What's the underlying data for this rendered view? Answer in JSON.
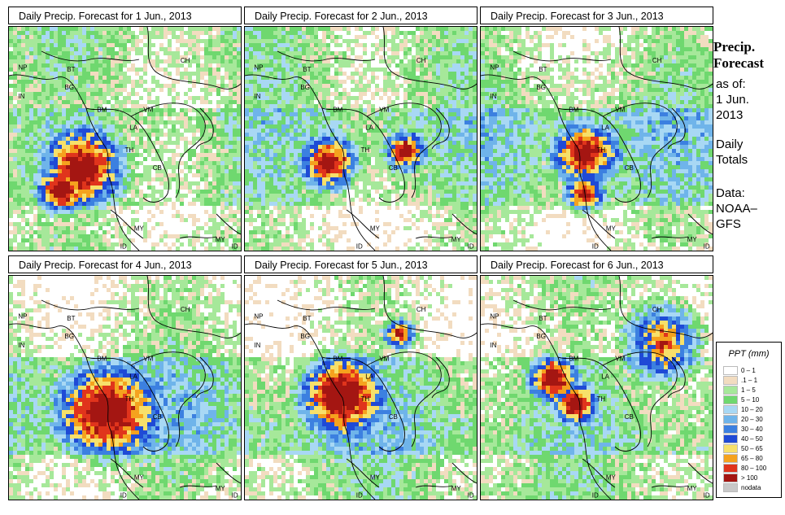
{
  "panels": [
    {
      "title": "Daily Precip. Forecast for  1 Jun., 2013",
      "seed": 11,
      "hot": 0
    },
    {
      "title": "Daily Precip. Forecast for  2 Jun., 2013",
      "seed": 23,
      "hot": 1
    },
    {
      "title": "Daily Precip. Forecast for  3 Jun., 2013",
      "seed": 37,
      "hot": 2
    },
    {
      "title": "Daily Precip. Forecast for  4 Jun., 2013",
      "seed": 41,
      "hot": 3
    },
    {
      "title": "Daily Precip. Forecast for  5 Jun., 2013",
      "seed": 53,
      "hot": 4
    },
    {
      "title": "Daily Precip. Forecast for  6 Jun., 2013",
      "seed": 67,
      "hot": 5
    }
  ],
  "map_labels": [
    "CH",
    "NP",
    "BT",
    "IN",
    "BG",
    "BM",
    "VM",
    "LA",
    "TH",
    "CB",
    "MY",
    "ID",
    "MY",
    "ID"
  ],
  "sidebar": {
    "title_line1": "Precip.",
    "title_line2": "Forecast",
    "asof_line1": "as of:",
    "asof_line2": "1 Jun.",
    "asof_line3": "2013",
    "totals_line1": "Daily",
    "totals_line2": "Totals",
    "data_line1": "Data:",
    "data_line2": "NOAA–",
    "data_line3": "GFS"
  },
  "legend": {
    "title": "PPT (mm)",
    "items": [
      {
        "label": "0 – 1",
        "color": "#ffffff"
      },
      {
        "label": ".1 – 1",
        "color": "#f2dcc0"
      },
      {
        "label": "1 – 5",
        "color": "#a6e89a"
      },
      {
        "label": "5 – 10",
        "color": "#6fd86f"
      },
      {
        "label": "10 – 20",
        "color": "#a8d8f4"
      },
      {
        "label": "20 – 30",
        "color": "#6fb4ea"
      },
      {
        "label": "30 – 40",
        "color": "#3c80e0"
      },
      {
        "label": "40 – 50",
        "color": "#1f4ad6"
      },
      {
        "label": "50 – 65",
        "color": "#f7e06a"
      },
      {
        "label": "65 – 80",
        "color": "#f5a21e"
      },
      {
        "label": "80 – 100",
        "color": "#e0341c"
      },
      {
        "label": "> 100",
        "color": "#a41612"
      },
      {
        "label": "nodata",
        "color": "#c8c8c8"
      }
    ]
  }
}
